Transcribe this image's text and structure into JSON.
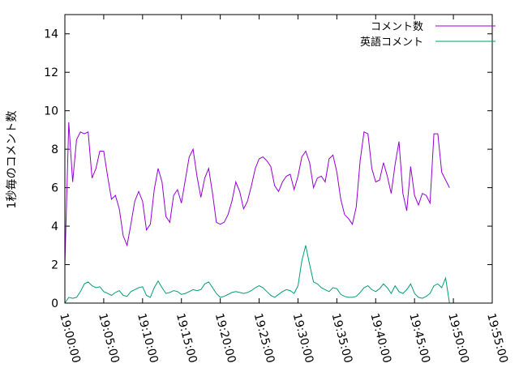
{
  "chart_data": {
    "type": "line",
    "title": "",
    "xlabel": "",
    "ylabel": "1秒毎のコメント数",
    "ylim": [
      0,
      15
    ],
    "yticks": [
      0,
      2,
      4,
      6,
      8,
      10,
      12,
      14
    ],
    "xlim": [
      "19:00:00",
      "19:55:00"
    ],
    "xticks": [
      "19:00:00",
      "19:05:00",
      "19:10:00",
      "19:15:00",
      "19:20:00",
      "19:25:00",
      "19:30:00",
      "19:35:00",
      "19:40:00",
      "19:45:00",
      "19:50:00",
      "19:55:00"
    ],
    "grid": false,
    "legend_position": "top-right",
    "series": [
      {
        "name": "コメント数",
        "color": "#9400d3",
        "points": [
          [
            "19:00:00",
            2.0
          ],
          [
            "19:00:30",
            9.4
          ],
          [
            "19:01:00",
            6.3
          ],
          [
            "19:01:30",
            8.5
          ],
          [
            "19:02:00",
            8.9
          ],
          [
            "19:02:30",
            8.8
          ],
          [
            "19:03:00",
            8.9
          ],
          [
            "19:03:30",
            6.5
          ],
          [
            "19:04:00",
            7.0
          ],
          [
            "19:04:30",
            7.9
          ],
          [
            "19:05:00",
            7.9
          ],
          [
            "19:05:30",
            6.6
          ],
          [
            "19:06:00",
            5.4
          ],
          [
            "19:06:30",
            5.6
          ],
          [
            "19:07:00",
            4.9
          ],
          [
            "19:07:30",
            3.5
          ],
          [
            "19:08:00",
            3.0
          ],
          [
            "19:08:30",
            4.1
          ],
          [
            "19:09:00",
            5.3
          ],
          [
            "19:09:30",
            5.8
          ],
          [
            "19:10:00",
            5.3
          ],
          [
            "19:10:30",
            3.8
          ],
          [
            "19:11:00",
            4.1
          ],
          [
            "19:11:30",
            5.9
          ],
          [
            "19:12:00",
            7.0
          ],
          [
            "19:12:30",
            6.3
          ],
          [
            "19:13:00",
            4.5
          ],
          [
            "19:13:30",
            4.2
          ],
          [
            "19:14:00",
            5.6
          ],
          [
            "19:14:30",
            5.9
          ],
          [
            "19:15:00",
            5.2
          ],
          [
            "19:15:30",
            6.4
          ],
          [
            "19:16:00",
            7.6
          ],
          [
            "19:16:30",
            8.0
          ],
          [
            "19:17:00",
            6.6
          ],
          [
            "19:17:30",
            5.5
          ],
          [
            "19:18:00",
            6.5
          ],
          [
            "19:18:30",
            7.0
          ],
          [
            "19:19:00",
            5.7
          ],
          [
            "19:19:30",
            4.2
          ],
          [
            "19:20:00",
            4.1
          ],
          [
            "19:20:30",
            4.2
          ],
          [
            "19:21:00",
            4.6
          ],
          [
            "19:21:30",
            5.3
          ],
          [
            "19:22:00",
            6.3
          ],
          [
            "19:22:30",
            5.8
          ],
          [
            "19:23:00",
            4.9
          ],
          [
            "19:23:30",
            5.3
          ],
          [
            "19:24:00",
            6.1
          ],
          [
            "19:24:30",
            7.0
          ],
          [
            "19:25:00",
            7.5
          ],
          [
            "19:25:30",
            7.6
          ],
          [
            "19:26:00",
            7.4
          ],
          [
            "19:26:30",
            7.1
          ],
          [
            "19:27:00",
            6.1
          ],
          [
            "19:27:30",
            5.8
          ],
          [
            "19:28:00",
            6.3
          ],
          [
            "19:28:30",
            6.6
          ],
          [
            "19:29:00",
            6.7
          ],
          [
            "19:29:30",
            5.9
          ],
          [
            "19:30:00",
            6.6
          ],
          [
            "19:30:30",
            7.6
          ],
          [
            "19:31:00",
            7.9
          ],
          [
            "19:31:30",
            7.3
          ],
          [
            "19:32:00",
            6.0
          ],
          [
            "19:32:30",
            6.5
          ],
          [
            "19:33:00",
            6.6
          ],
          [
            "19:33:30",
            6.3
          ],
          [
            "19:34:00",
            7.5
          ],
          [
            "19:34:30",
            7.7
          ],
          [
            "19:35:00",
            6.8
          ],
          [
            "19:35:30",
            5.4
          ],
          [
            "19:36:00",
            4.6
          ],
          [
            "19:36:30",
            4.4
          ],
          [
            "19:37:00",
            4.1
          ],
          [
            "19:37:30",
            5.0
          ],
          [
            "19:38:00",
            7.4
          ],
          [
            "19:38:30",
            8.9
          ],
          [
            "19:39:00",
            8.8
          ],
          [
            "19:39:30",
            7.0
          ],
          [
            "19:40:00",
            6.3
          ],
          [
            "19:40:30",
            6.4
          ],
          [
            "19:41:00",
            7.3
          ],
          [
            "19:41:30",
            6.6
          ],
          [
            "19:42:00",
            5.7
          ],
          [
            "19:42:30",
            7.2
          ],
          [
            "19:43:00",
            8.4
          ],
          [
            "19:43:30",
            5.7
          ],
          [
            "19:44:00",
            4.8
          ],
          [
            "19:44:30",
            7.1
          ],
          [
            "19:45:00",
            5.6
          ],
          [
            "19:45:30",
            5.1
          ],
          [
            "19:46:00",
            5.7
          ],
          [
            "19:46:30",
            5.6
          ],
          [
            "19:47:00",
            5.2
          ],
          [
            "19:47:30",
            8.8
          ],
          [
            "19:48:00",
            8.8
          ],
          [
            "19:48:30",
            6.8
          ],
          [
            "19:49:00",
            6.4
          ],
          [
            "19:49:30",
            6.0
          ]
        ]
      },
      {
        "name": "英語コメント",
        "color": "#009e73",
        "points": [
          [
            "19:00:00",
            0.0
          ],
          [
            "19:00:30",
            0.3
          ],
          [
            "19:01:00",
            0.25
          ],
          [
            "19:01:30",
            0.3
          ],
          [
            "19:02:00",
            0.6
          ],
          [
            "19:02:30",
            1.0
          ],
          [
            "19:03:00",
            1.1
          ],
          [
            "19:03:30",
            0.9
          ],
          [
            "19:04:00",
            0.8
          ],
          [
            "19:04:30",
            0.85
          ],
          [
            "19:05:00",
            0.6
          ],
          [
            "19:05:30",
            0.5
          ],
          [
            "19:06:00",
            0.4
          ],
          [
            "19:06:30",
            0.55
          ],
          [
            "19:07:00",
            0.65
          ],
          [
            "19:07:30",
            0.4
          ],
          [
            "19:08:00",
            0.35
          ],
          [
            "19:08:30",
            0.6
          ],
          [
            "19:09:00",
            0.7
          ],
          [
            "19:09:30",
            0.8
          ],
          [
            "19:10:00",
            0.85
          ],
          [
            "19:10:30",
            0.4
          ],
          [
            "19:11:00",
            0.3
          ],
          [
            "19:11:30",
            0.8
          ],
          [
            "19:12:00",
            1.15
          ],
          [
            "19:12:30",
            0.8
          ],
          [
            "19:13:00",
            0.5
          ],
          [
            "19:13:30",
            0.55
          ],
          [
            "19:14:00",
            0.65
          ],
          [
            "19:14:30",
            0.6
          ],
          [
            "19:15:00",
            0.45
          ],
          [
            "19:15:30",
            0.5
          ],
          [
            "19:16:00",
            0.6
          ],
          [
            "19:16:30",
            0.7
          ],
          [
            "19:17:00",
            0.65
          ],
          [
            "19:17:30",
            0.7
          ],
          [
            "19:18:00",
            1.0
          ],
          [
            "19:18:30",
            1.1
          ],
          [
            "19:19:00",
            0.8
          ],
          [
            "19:19:30",
            0.5
          ],
          [
            "19:20:00",
            0.3
          ],
          [
            "19:20:30",
            0.35
          ],
          [
            "19:21:00",
            0.45
          ],
          [
            "19:21:30",
            0.55
          ],
          [
            "19:22:00",
            0.6
          ],
          [
            "19:22:30",
            0.55
          ],
          [
            "19:23:00",
            0.5
          ],
          [
            "19:23:30",
            0.55
          ],
          [
            "19:24:00",
            0.65
          ],
          [
            "19:24:30",
            0.8
          ],
          [
            "19:25:00",
            0.9
          ],
          [
            "19:25:30",
            0.8
          ],
          [
            "19:26:00",
            0.6
          ],
          [
            "19:26:30",
            0.4
          ],
          [
            "19:27:00",
            0.3
          ],
          [
            "19:27:30",
            0.45
          ],
          [
            "19:28:00",
            0.6
          ],
          [
            "19:28:30",
            0.7
          ],
          [
            "19:29:00",
            0.65
          ],
          [
            "19:29:30",
            0.5
          ],
          [
            "19:30:00",
            0.9
          ],
          [
            "19:30:30",
            2.2
          ],
          [
            "19:31:00",
            3.0
          ],
          [
            "19:31:30",
            2.0
          ],
          [
            "19:32:00",
            1.1
          ],
          [
            "19:32:30",
            1.0
          ],
          [
            "19:33:00",
            0.8
          ],
          [
            "19:33:30",
            0.7
          ],
          [
            "19:34:00",
            0.6
          ],
          [
            "19:34:30",
            0.8
          ],
          [
            "19:35:00",
            0.75
          ],
          [
            "19:35:30",
            0.45
          ],
          [
            "19:36:00",
            0.35
          ],
          [
            "19:36:30",
            0.3
          ],
          [
            "19:37:00",
            0.3
          ],
          [
            "19:37:30",
            0.35
          ],
          [
            "19:38:00",
            0.55
          ],
          [
            "19:38:30",
            0.8
          ],
          [
            "19:39:00",
            0.9
          ],
          [
            "19:39:30",
            0.7
          ],
          [
            "19:40:00",
            0.6
          ],
          [
            "19:40:30",
            0.75
          ],
          [
            "19:41:00",
            1.0
          ],
          [
            "19:41:30",
            0.8
          ],
          [
            "19:42:00",
            0.5
          ],
          [
            "19:42:30",
            0.9
          ],
          [
            "19:43:00",
            0.6
          ],
          [
            "19:43:30",
            0.5
          ],
          [
            "19:44:00",
            0.7
          ],
          [
            "19:44:30",
            1.0
          ],
          [
            "19:45:00",
            0.5
          ],
          [
            "19:45:30",
            0.3
          ],
          [
            "19:46:00",
            0.25
          ],
          [
            "19:46:30",
            0.35
          ],
          [
            "19:47:00",
            0.5
          ],
          [
            "19:47:30",
            0.9
          ],
          [
            "19:48:00",
            1.0
          ],
          [
            "19:48:30",
            0.8
          ],
          [
            "19:49:00",
            1.3
          ],
          [
            "19:49:30",
            0.0
          ]
        ]
      }
    ]
  }
}
